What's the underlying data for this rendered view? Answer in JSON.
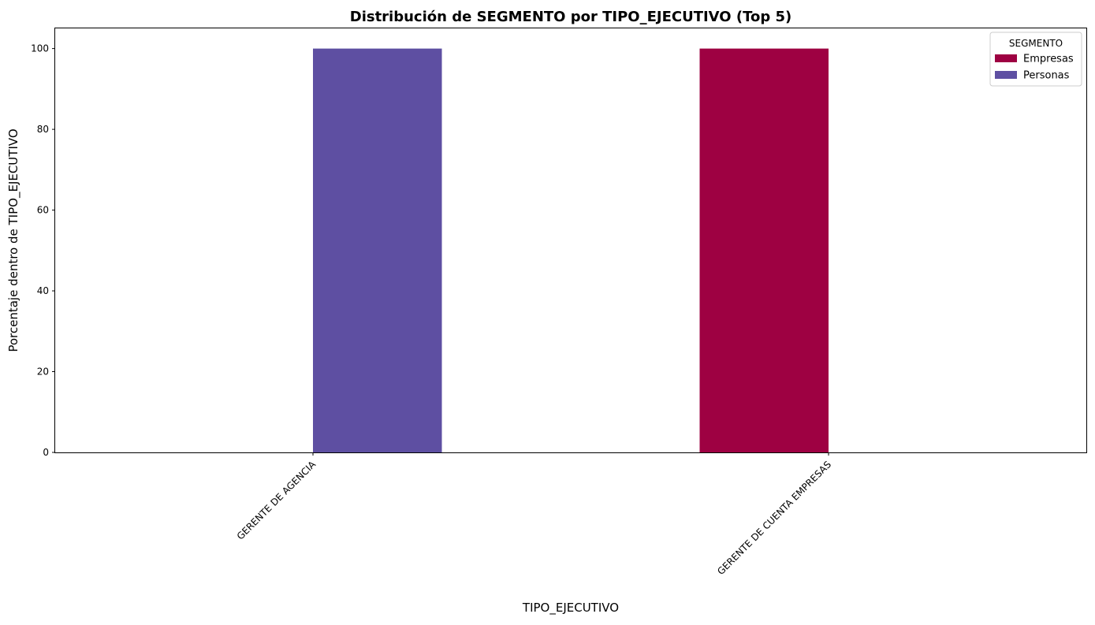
{
  "chart_data": {
    "type": "bar",
    "title": "Distribución de SEGMENTO por TIPO_EJECUTIVO (Top 5)",
    "xlabel": "TIPO_EJECUTIVO",
    "ylabel": "Porcentaje dentro de TIPO_EJECUTIVO",
    "categories": [
      "GERENTE DE AGENCIA",
      "GERENTE DE CUENTA EMPRESAS"
    ],
    "series": [
      {
        "name": "Empresas",
        "color": "#9e0142",
        "values": [
          0,
          100
        ]
      },
      {
        "name": "Personas",
        "color": "#5e4fa2",
        "values": [
          100,
          0
        ]
      }
    ],
    "ylim": [
      0,
      105
    ],
    "yticks": [
      0,
      20,
      40,
      60,
      80,
      100
    ],
    "legend": {
      "title": "SEGMENTO",
      "position": "top-right"
    },
    "grid": false
  }
}
